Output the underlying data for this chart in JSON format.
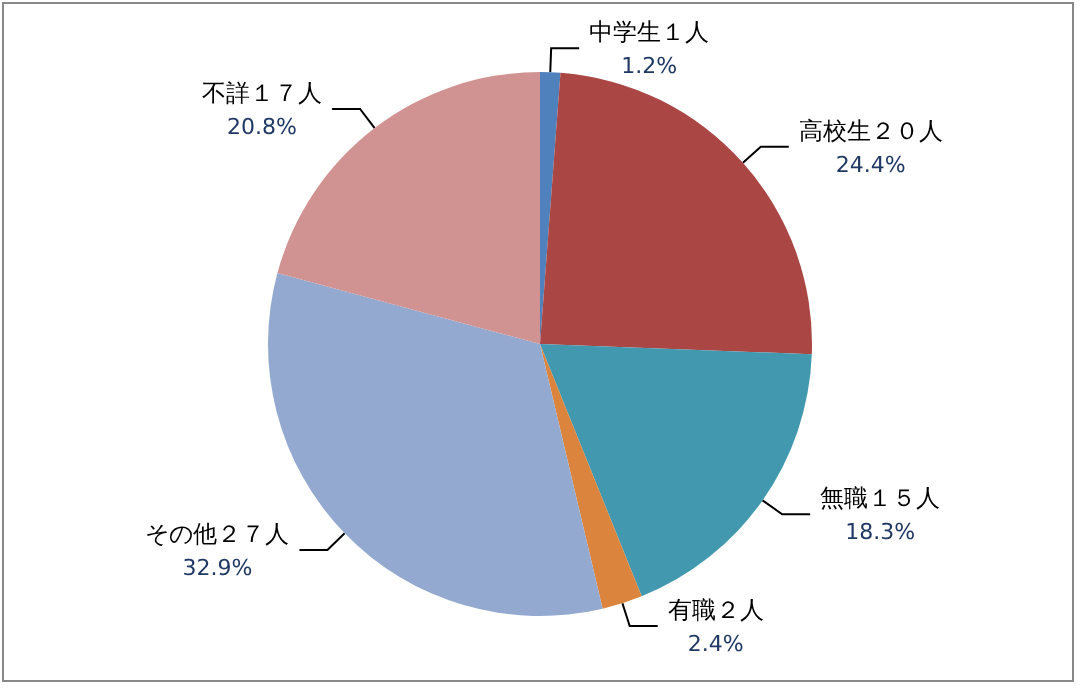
{
  "chart_data": {
    "type": "pie",
    "categories": [
      "中学生１人",
      "高校生２０人",
      "無職１５人",
      "有職２人",
      "その他２７人",
      "不詳１７人"
    ],
    "values": [
      1.2,
      24.4,
      18.3,
      2.4,
      32.9,
      20.8
    ],
    "value_labels": [
      "1.2%",
      "24.4%",
      "18.3%",
      "2.4%",
      "32.9%",
      "20.8%"
    ],
    "colors": [
      "#4f81bd",
      "#aa4643",
      "#4198af",
      "#db843d",
      "#93a9cf",
      "#d19392"
    ],
    "legend": false
  }
}
